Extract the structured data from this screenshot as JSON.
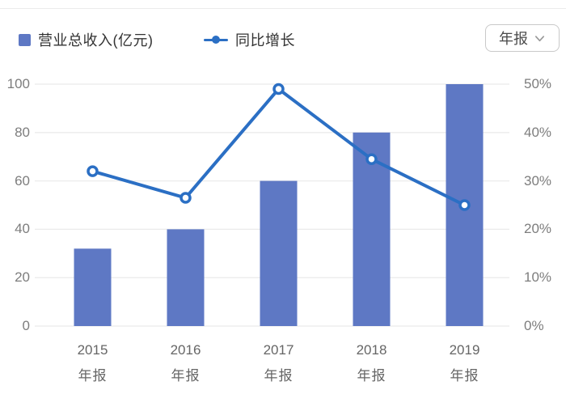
{
  "header": {
    "legend_bar": {
      "label": "营业总收入(亿元)"
    },
    "legend_line": {
      "label": "同比增长"
    },
    "period_selector": {
      "value": "年报"
    }
  },
  "colors": {
    "bar": "#5E78C4",
    "line": "#2B6FC4",
    "grid": "#ebebeb",
    "axis_text": "#7d7d7d",
    "category_text": "#666666",
    "legend_text": "#333333"
  },
  "chart_data": {
    "type": "bar+line combo",
    "categories": [
      "2015",
      "2016",
      "2017",
      "2018",
      "2019"
    ],
    "category_sublabel": "年报",
    "series": [
      {
        "name": "营业总收入(亿元)",
        "type": "bar",
        "axis": "left",
        "unit": "亿元",
        "values": [
          32,
          40,
          60,
          80,
          100
        ]
      },
      {
        "name": "同比增长",
        "type": "line",
        "axis": "right",
        "unit": "%",
        "values": [
          32,
          26.5,
          49,
          34.5,
          25
        ]
      }
    ],
    "left_axis": {
      "min": 0,
      "max": 100,
      "ticks": [
        "100",
        "80",
        "60",
        "40",
        "20",
        "0"
      ]
    },
    "right_axis": {
      "min": 0,
      "max": 50,
      "ticks": [
        "50%",
        "40%",
        "30%",
        "20%",
        "10%",
        "0%"
      ]
    },
    "grid": true,
    "legend_position": "top-left"
  }
}
